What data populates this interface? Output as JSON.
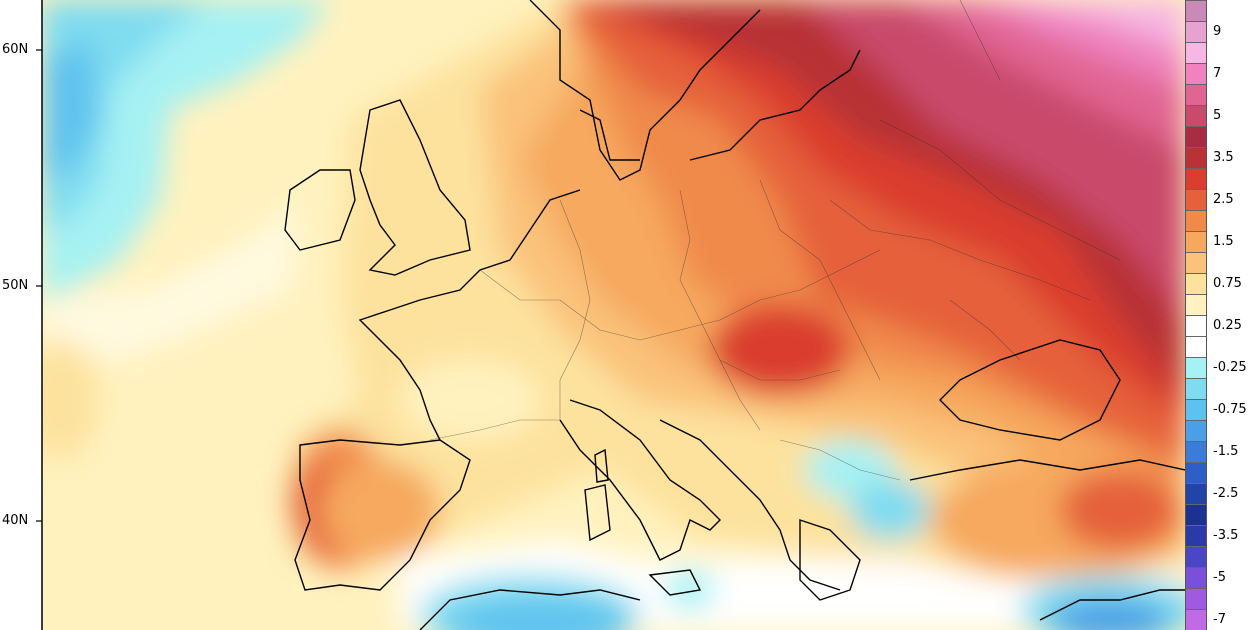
{
  "map": {
    "latitude_labels": [
      "60N",
      "50N",
      "40N"
    ],
    "legend": {
      "levels": [
        {
          "label": "",
          "color": "#c98ab8"
        },
        {
          "label": "9",
          "color": "#e7a2d2"
        },
        {
          "label": "",
          "color": "#f7b6e3"
        },
        {
          "label": "7",
          "color": "#ef82bf"
        },
        {
          "label": "",
          "color": "#e06592"
        },
        {
          "label": "5",
          "color": "#c94a6a"
        },
        {
          "label": "",
          "color": "#a82c42"
        },
        {
          "label": "3.5",
          "color": "#b83236"
        },
        {
          "label": "",
          "color": "#da3e2e"
        },
        {
          "label": "2.5",
          "color": "#e5613a"
        },
        {
          "label": "",
          "color": "#f08a4b"
        },
        {
          "label": "1.5",
          "color": "#f6a95e"
        },
        {
          "label": "",
          "color": "#fac27a"
        },
        {
          "label": "0.75",
          "color": "#fde29e"
        },
        {
          "label": "",
          "color": "#fff2bf"
        },
        {
          "label": "0.25",
          "color": "#ffffff"
        },
        {
          "label": "",
          "color": "#ffffff"
        },
        {
          "label": "-0.25",
          "color": "#a6f1f3"
        },
        {
          "label": "",
          "color": "#7fdcf0"
        },
        {
          "label": "-0.75",
          "color": "#5ec2ee"
        },
        {
          "label": "",
          "color": "#4a9fe6"
        },
        {
          "label": "-1.5",
          "color": "#3a7cd8"
        },
        {
          "label": "",
          "color": "#2d5fc4"
        },
        {
          "label": "-2.5",
          "color": "#2244a8"
        },
        {
          "label": "",
          "color": "#1c3290"
        },
        {
          "label": "-3.5",
          "color": "#2a3aa8"
        },
        {
          "label": "",
          "color": "#4a46c8"
        },
        {
          "label": "-5",
          "color": "#7a50d8"
        },
        {
          "label": "",
          "color": "#a05ae0"
        },
        {
          "label": "-7",
          "color": "#c06ae6"
        }
      ]
    }
  }
}
